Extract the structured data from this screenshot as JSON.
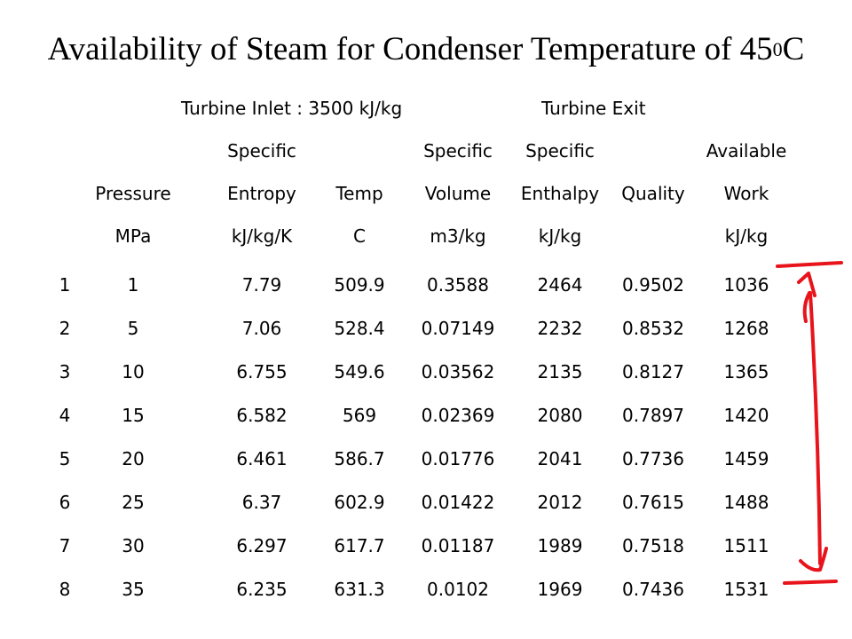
{
  "title": {
    "text": "Availability of Steam for Condenser Temperature of 45",
    "superscript": "0",
    "suffix": "C"
  },
  "groups": {
    "inlet": "Turbine Inlet : 3500 kJ/kg",
    "exit": "Turbine Exit"
  },
  "header_rows": [
    [
      "",
      "",
      "Specific",
      "",
      "Specific",
      "Specific",
      "",
      "Available"
    ],
    [
      "",
      "Pressure",
      "Entropy",
      "Temp",
      "Volume",
      "Enthalpy",
      "Quality",
      "Work"
    ],
    [
      "",
      "MPa",
      "kJ/kg/K",
      "C",
      "m3/kg",
      "kJ/kg",
      "",
      "kJ/kg"
    ]
  ],
  "rows": [
    [
      "1",
      "1",
      "7.79",
      "509.9",
      "0.3588",
      "2464",
      "0.9502",
      "1036"
    ],
    [
      "2",
      "5",
      "7.06",
      "528.4",
      "0.07149",
      "2232",
      "0.8532",
      "1268"
    ],
    [
      "3",
      "10",
      "6.755",
      "549.6",
      "0.03562",
      "2135",
      "0.8127",
      "1365"
    ],
    [
      "4",
      "15",
      "6.582",
      "569",
      "0.02369",
      "2080",
      "0.7897",
      "1420"
    ],
    [
      "5",
      "20",
      "6.461",
      "586.7",
      "0.01776",
      "2041",
      "0.7736",
      "1459"
    ],
    [
      "6",
      "25",
      "6.37",
      "602.9",
      "0.01422",
      "2012",
      "0.7615",
      "1488"
    ],
    [
      "7",
      "30",
      "6.297",
      "617.7",
      "0.01187",
      "1989",
      "0.7518",
      "1511"
    ],
    [
      "8",
      "35",
      "6.235",
      "631.3",
      "0.0102",
      "1969",
      "0.7436",
      "1531"
    ]
  ],
  "colors": {
    "text": "#000000",
    "annotation": "#e8141c"
  }
}
